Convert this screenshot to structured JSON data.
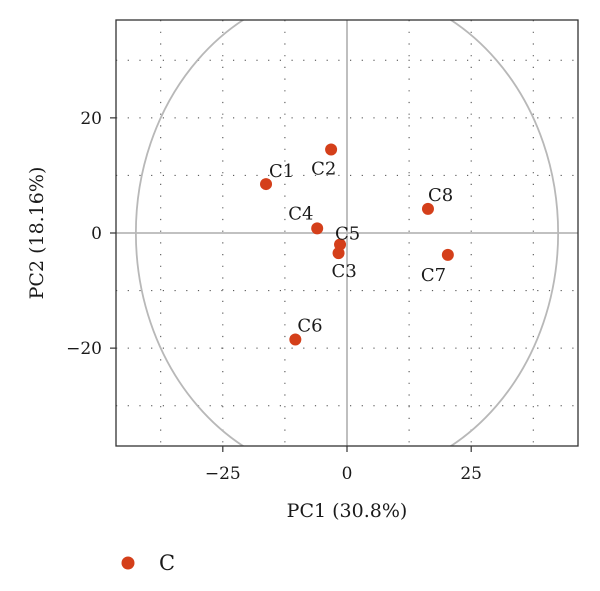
{
  "chart_data": {
    "type": "scatter",
    "xlabel": "PC1 (30.8%)",
    "ylabel": "PC2 (18.16%)",
    "xlim": [
      -46.5,
      46.5
    ],
    "ylim": [
      -37,
      37
    ],
    "xticks": [
      -25,
      0,
      25
    ],
    "xtick_labels": [
      "−25",
      "0",
      "25"
    ],
    "yticks": [
      -20,
      0,
      20
    ],
    "ytick_labels": [
      "−20",
      "0",
      "20"
    ],
    "grid": true,
    "zero_lines": true,
    "circle_radius": 42.5,
    "legend_placement": "bottom-left",
    "series": [
      {
        "name": "C",
        "color": "#d43f1a",
        "points": [
          {
            "label": "C1",
            "x": -16.3,
            "y": 8.5
          },
          {
            "label": "C2",
            "x": -3.2,
            "y": 14.5
          },
          {
            "label": "C3",
            "x": -1.7,
            "y": -3.5
          },
          {
            "label": "C4",
            "x": -6.0,
            "y": 0.8
          },
          {
            "label": "C5",
            "x": -1.4,
            "y": -2.0
          },
          {
            "label": "C6",
            "x": -10.4,
            "y": -18.5
          },
          {
            "label": "C7",
            "x": 20.3,
            "y": -3.8
          },
          {
            "label": "C8",
            "x": 16.3,
            "y": 4.2
          }
        ]
      }
    ],
    "colors": {
      "frame": "#333333",
      "grid": "#444444",
      "circle": "#b8b8b8",
      "zero_line": "#b8b8b8"
    }
  }
}
